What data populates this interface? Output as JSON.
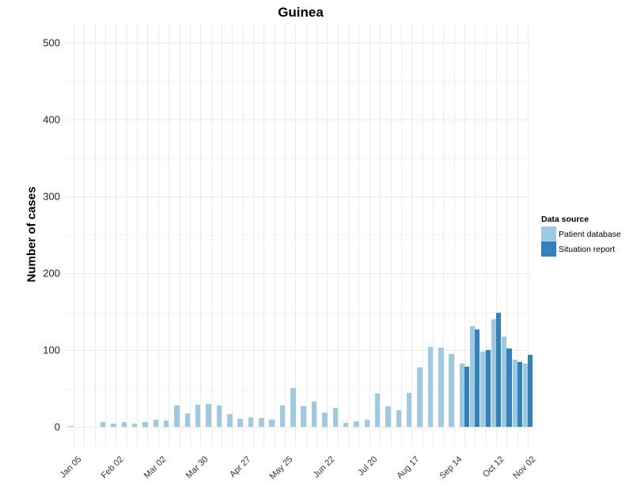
{
  "chart_data": {
    "type": "bar",
    "title": "Guinea",
    "xlabel": "",
    "ylabel": "Number of cases",
    "ylim": [
      -25,
      525
    ],
    "yticks": [
      0,
      100,
      200,
      300,
      400,
      500
    ],
    "xtick_labels": [
      "Jan 05",
      "Feb 02",
      "Mar 02",
      "Mar 30",
      "Apr 27",
      "May 25",
      "Jun 22",
      "Jul 20",
      "Aug 17",
      "Sep 14",
      "Oct 12",
      "Nov 02"
    ],
    "grid": true,
    "legend": {
      "title": "Data source",
      "position": "right",
      "entries": [
        "Patient database",
        "Situation report"
      ]
    },
    "categories": [
      "Jan 05",
      "Jan 12",
      "Jan 19",
      "Jan 26",
      "Feb 02",
      "Feb 09",
      "Feb 16",
      "Feb 23",
      "Mar 02",
      "Mar 09",
      "Mar 16",
      "Mar 23",
      "Mar 30",
      "Apr 06",
      "Apr 13",
      "Apr 20",
      "Apr 27",
      "May 04",
      "May 11",
      "May 18",
      "May 25",
      "Jun 01",
      "Jun 08",
      "Jun 15",
      "Jun 22",
      "Jun 29",
      "Jul 06",
      "Jul 13",
      "Jul 20",
      "Jul 27",
      "Aug 03",
      "Aug 10",
      "Aug 17",
      "Aug 24",
      "Aug 31",
      "Sep 07",
      "Sep 14",
      "Sep 21",
      "Sep 28",
      "Oct 05",
      "Oct 12",
      "Oct 19",
      "Oct 26",
      "Nov 02"
    ],
    "series": [
      {
        "name": "Patient database",
        "color": "#9ecae1",
        "values": [
          1,
          0,
          0,
          6,
          4,
          6,
          4,
          6,
          9,
          8,
          28,
          18,
          29,
          30,
          28,
          17,
          10,
          12,
          11,
          9,
          28,
          51,
          27,
          33,
          19,
          25,
          5,
          7,
          9,
          43,
          27,
          22,
          44,
          77,
          104,
          103,
          95,
          83,
          131,
          98,
          140,
          118,
          88,
          82
        ]
      },
      {
        "name": "Situation report",
        "color": "#3182bd",
        "values": [
          null,
          null,
          null,
          null,
          null,
          null,
          null,
          null,
          null,
          null,
          null,
          null,
          null,
          null,
          null,
          null,
          null,
          null,
          null,
          null,
          null,
          null,
          null,
          null,
          null,
          null,
          null,
          null,
          null,
          null,
          null,
          null,
          null,
          null,
          null,
          null,
          null,
          78,
          127,
          100,
          148,
          102,
          85,
          94
        ]
      }
    ]
  }
}
